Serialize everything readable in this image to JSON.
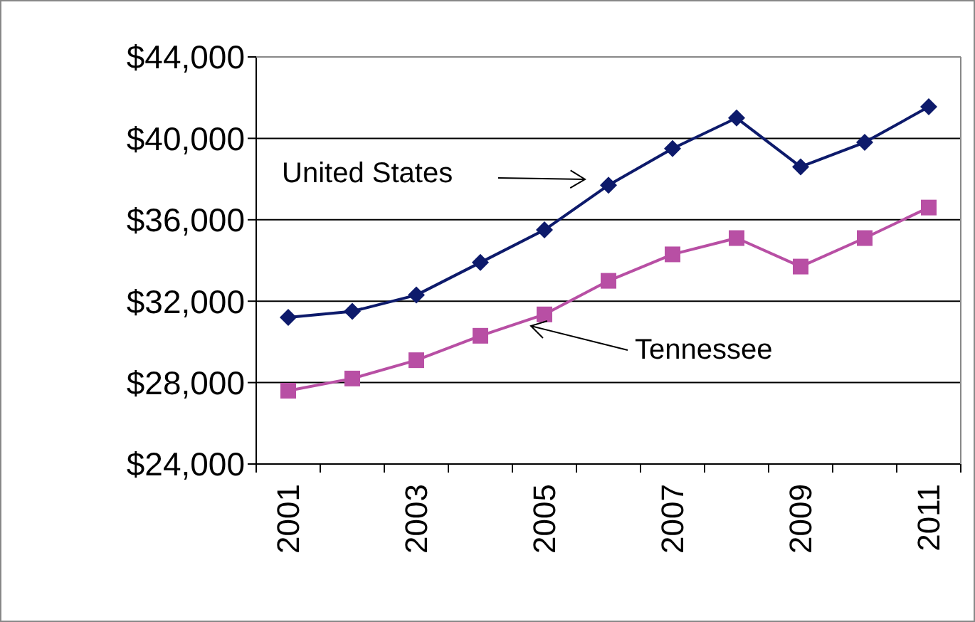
{
  "chart_data": {
    "type": "line",
    "categories": [
      "2001",
      null,
      "2003",
      null,
      "2005",
      null,
      "2007",
      null,
      "2009",
      null,
      "2011"
    ],
    "series": [
      {
        "name": "United States",
        "color": "#0d1a6b",
        "marker": "diamond",
        "values": [
          31200,
          31500,
          32300,
          33900,
          35500,
          37700,
          39500,
          41000,
          38600,
          39800,
          41550
        ]
      },
      {
        "name": "Tennessee",
        "color": "#b84fa4",
        "marker": "square",
        "values": [
          27600,
          28200,
          29100,
          30300,
          31350,
          33000,
          34300,
          35100,
          33700,
          35100,
          36600
        ]
      }
    ],
    "ylim": [
      24000,
      44000
    ],
    "yticks": [
      {
        "value": 24000,
        "label": "$24,000"
      },
      {
        "value": 28000,
        "label": "$28,000"
      },
      {
        "value": 32000,
        "label": "$32,000"
      },
      {
        "value": 36000,
        "label": "$36,000"
      },
      {
        "value": 40000,
        "label": "$40,000"
      },
      {
        "value": 44000,
        "label": "$44,000"
      }
    ],
    "grid": "y",
    "legend": false
  }
}
